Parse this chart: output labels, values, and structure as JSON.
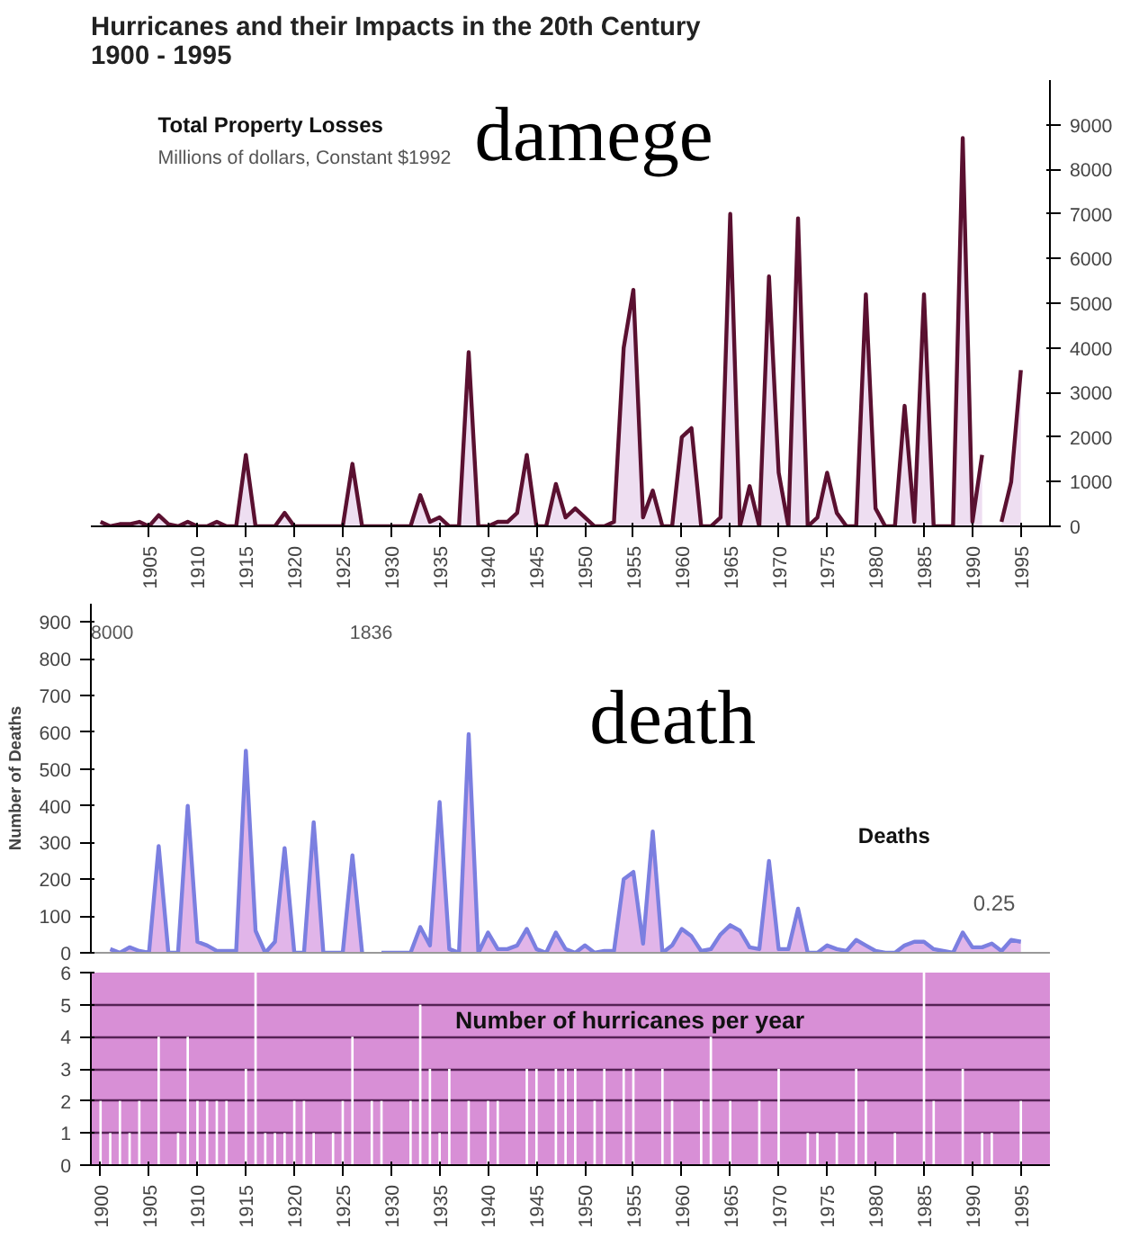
{
  "chart_data": [
    {
      "type": "area",
      "title": "Hurricanes and their Impacts in the 20th Century\n1900 - 1995",
      "annotations": [
        "Millions of dollars, Constant $1992",
        "damege"
      ],
      "x": [
        1900,
        1901,
        1902,
        1903,
        1904,
        1905,
        1906,
        1907,
        1908,
        1909,
        1910,
        1911,
        1912,
        1913,
        1914,
        1915,
        1916,
        1917,
        1918,
        1919,
        1920,
        1921,
        1922,
        1923,
        1924,
        1925,
        1926,
        1927,
        1928,
        1929,
        1930,
        1931,
        1932,
        1933,
        1934,
        1935,
        1936,
        1937,
        1938,
        1939,
        1940,
        1941,
        1942,
        1943,
        1944,
        1945,
        1946,
        1947,
        1948,
        1949,
        1950,
        1951,
        1952,
        1953,
        1954,
        1955,
        1956,
        1957,
        1958,
        1959,
        1960,
        1961,
        1962,
        1963,
        1964,
        1965,
        1966,
        1967,
        1968,
        1969,
        1970,
        1971,
        1972,
        1973,
        1974,
        1975,
        1976,
        1977,
        1978,
        1979,
        1980,
        1981,
        1982,
        1983,
        1984,
        1985,
        1986,
        1987,
        1988,
        1989,
        1990,
        1991,
        1992,
        1993,
        1994,
        1995
      ],
      "series": [
        {
          "name": "Total Property Losses",
          "color": "#5a1030",
          "axis": "y2",
          "values": [
            100,
            0,
            50,
            50,
            100,
            0,
            250,
            50,
            0,
            100,
            0,
            0,
            100,
            0,
            0,
            1600,
            0,
            0,
            0,
            300,
            0,
            0,
            0,
            0,
            0,
            0,
            1400,
            0,
            0,
            0,
            0,
            0,
            0,
            700,
            100,
            200,
            0,
            0,
            3900,
            0,
            0,
            100,
            100,
            300,
            1600,
            0,
            0,
            950,
            200,
            400,
            200,
            0,
            0,
            100,
            4000,
            5300,
            200,
            800,
            0,
            0,
            2000,
            2200,
            0,
            0,
            200,
            7000,
            0,
            900,
            0,
            5600,
            1200,
            0,
            6900,
            0,
            200,
            1200,
            300,
            0,
            0,
            5200,
            400,
            0,
            0,
            2700,
            100,
            5200,
            0,
            0,
            0,
            8700,
            100,
            1600,
            null,
            100,
            1000,
            3500
          ]
        }
      ],
      "xlim": [
        1899,
        1998
      ],
      "xticks": [
        1905,
        1910,
        1915,
        1920,
        1925,
        1930,
        1935,
        1940,
        1945,
        1950,
        1955,
        1960,
        1965,
        1970,
        1975,
        1980,
        1985,
        1990,
        1995
      ],
      "y2lim": [
        0,
        10000
      ],
      "y2ticks": [
        0,
        1000,
        2000,
        3000,
        4000,
        5000,
        6000,
        7000,
        8000,
        9000
      ],
      "grid": false
    },
    {
      "type": "area",
      "ylabel": "Number of Deaths",
      "annotations": [
        "8000",
        "1836",
        "0.25",
        "death"
      ],
      "x": [
        1901,
        1902,
        1903,
        1904,
        1905,
        1906,
        1907,
        1908,
        1909,
        1910,
        1911,
        1912,
        1913,
        1914,
        1915,
        1916,
        1917,
        1918,
        1919,
        1920,
        1921,
        1922,
        1923,
        1924,
        1925,
        1926,
        1927,
        1928,
        1929,
        1930,
        1931,
        1932,
        1933,
        1934,
        1935,
        1936,
        1937,
        1938,
        1939,
        1940,
        1941,
        1942,
        1943,
        1944,
        1945,
        1946,
        1947,
        1948,
        1949,
        1950,
        1951,
        1952,
        1953,
        1954,
        1955,
        1956,
        1957,
        1958,
        1959,
        1960,
        1961,
        1962,
        1963,
        1964,
        1965,
        1966,
        1967,
        1968,
        1969,
        1970,
        1971,
        1972,
        1973,
        1974,
        1975,
        1976,
        1977,
        1978,
        1979,
        1980,
        1981,
        1982,
        1983,
        1984,
        1985,
        1986,
        1987,
        1988,
        1989,
        1990,
        1991,
        1992,
        1993,
        1994,
        1995
      ],
      "series": [
        {
          "name": "Deaths",
          "color": "#7b7fe0",
          "values": [
            10,
            0,
            15,
            5,
            0,
            290,
            0,
            0,
            400,
            30,
            20,
            5,
            5,
            5,
            550,
            60,
            0,
            30,
            285,
            0,
            0,
            355,
            0,
            0,
            0,
            265,
            0,
            null,
            0,
            0,
            0,
            0,
            70,
            20,
            410,
            10,
            0,
            595,
            0,
            55,
            10,
            10,
            20,
            65,
            10,
            0,
            55,
            10,
            0,
            20,
            0,
            5,
            5,
            200,
            220,
            25,
            330,
            0,
            20,
            65,
            45,
            5,
            10,
            50,
            75,
            60,
            15,
            10,
            250,
            10,
            10,
            120,
            0,
            0,
            20,
            10,
            5,
            35,
            20,
            5,
            0,
            0,
            20,
            30,
            30,
            10,
            5,
            0,
            55,
            15,
            15,
            25,
            5,
            35,
            30
          ]
        }
      ],
      "xlim": [
        1899,
        1998
      ],
      "ylim": [
        0,
        950
      ],
      "yticks": [
        0,
        100,
        200,
        300,
        400,
        500,
        600,
        700,
        800,
        900
      ],
      "tick_labels": "y",
      "grid": false
    },
    {
      "type": "bar",
      "title": "Number of hurricanes per year",
      "x": [
        1900,
        1901,
        1902,
        1903,
        1904,
        1905,
        1906,
        1907,
        1908,
        1909,
        1910,
        1911,
        1912,
        1913,
        1914,
        1915,
        1916,
        1917,
        1918,
        1919,
        1920,
        1921,
        1922,
        1923,
        1924,
        1925,
        1926,
        1927,
        1928,
        1929,
        1930,
        1931,
        1932,
        1933,
        1934,
        1935,
        1936,
        1937,
        1938,
        1939,
        1940,
        1941,
        1942,
        1943,
        1944,
        1945,
        1946,
        1947,
        1948,
        1949,
        1950,
        1951,
        1952,
        1953,
        1954,
        1955,
        1956,
        1957,
        1958,
        1959,
        1960,
        1961,
        1962,
        1963,
        1964,
        1965,
        1966,
        1967,
        1968,
        1969,
        1970,
        1971,
        1972,
        1973,
        1974,
        1975,
        1976,
        1977,
        1978,
        1979,
        1980,
        1981,
        1982,
        1983,
        1984,
        1985,
        1986,
        1987,
        1988,
        1989,
        1990,
        1991,
        1992,
        1993,
        1994,
        1995
      ],
      "values": [
        2,
        1,
        2,
        1,
        2,
        0,
        4,
        0,
        1,
        4,
        2,
        2,
        2,
        2,
        0,
        3,
        6,
        1,
        1,
        1,
        2,
        2,
        1,
        0,
        1,
        2,
        4,
        0,
        2,
        2,
        0,
        0,
        2,
        5,
        3,
        1,
        3,
        0,
        2,
        0,
        2,
        2,
        0,
        0,
        3,
        3,
        0,
        3,
        3,
        3,
        0,
        2,
        3,
        0,
        3,
        3,
        0,
        0,
        3,
        2,
        0,
        0,
        2,
        4,
        0,
        2,
        0,
        0,
        2,
        0,
        3,
        0,
        0,
        1,
        1,
        0,
        1,
        0,
        3,
        2,
        0,
        0,
        1,
        0,
        0,
        6,
        2,
        0,
        0,
        3,
        0,
        1,
        1,
        0,
        0,
        2
      ],
      "color": "#ffffff",
      "xlim": [
        1899,
        1998
      ],
      "xticks": [
        1900,
        1905,
        1910,
        1915,
        1920,
        1925,
        1930,
        1935,
        1940,
        1945,
        1950,
        1955,
        1960,
        1965,
        1970,
        1975,
        1980,
        1985,
        1990,
        1995
      ],
      "ylim": [
        0,
        6
      ],
      "yticks": [
        0,
        1,
        2,
        3,
        4,
        5,
        6
      ],
      "grid": "y"
    }
  ]
}
